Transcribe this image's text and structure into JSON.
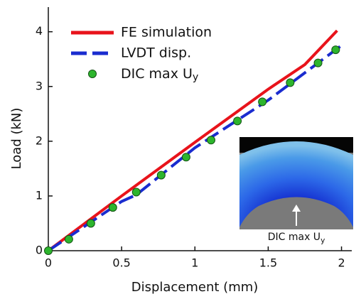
{
  "chart_data": {
    "type": "line",
    "xlabel": "Displacement (mm)",
    "ylabel": "Load (kN)",
    "xlim": [
      0,
      2.07
    ],
    "ylim": [
      0,
      4.45
    ],
    "xticks": [
      0,
      0.5,
      1,
      1.5,
      2
    ],
    "yticks": [
      0,
      1,
      2,
      3,
      4
    ],
    "legend": "upper left",
    "series": [
      {
        "name": "FE simulation",
        "color": "#e8131b",
        "style": "solid",
        "x": [
          0,
          0.5,
          1,
          1.5,
          1.75,
          1.97
        ],
        "values": [
          0,
          1.0,
          1.98,
          2.95,
          3.4,
          4.02
        ]
      },
      {
        "name": "LVDT disp.",
        "color": "#1a2ccf",
        "style": "dashed",
        "x": [
          0,
          0.5,
          0.6,
          1,
          1.5,
          2
        ],
        "values": [
          0,
          0.9,
          1.02,
          1.88,
          2.75,
          3.75
        ]
      },
      {
        "name": "DIC max Uy",
        "color": "#2db52d",
        "style": "markers",
        "x": [
          0,
          0.14,
          0.29,
          0.44,
          0.6,
          0.77,
          0.94,
          1.11,
          1.29,
          1.46,
          1.65,
          1.84,
          1.96
        ],
        "values": [
          0,
          0.21,
          0.5,
          0.79,
          1.07,
          1.38,
          1.71,
          2.02,
          2.37,
          2.72,
          3.07,
          3.43,
          3.67
        ]
      }
    ],
    "inset_label": "DIC max Uy"
  }
}
